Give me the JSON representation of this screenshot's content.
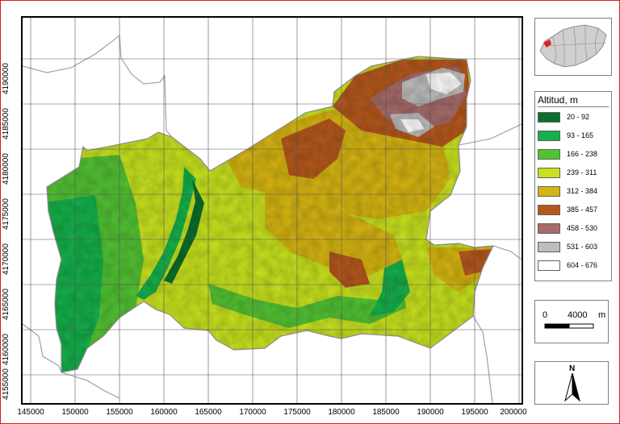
{
  "map": {
    "x_ticks": [
      "145000",
      "150000",
      "155000",
      "160000",
      "165000",
      "170000",
      "175000",
      "180000",
      "185000",
      "190000",
      "195000",
      "200000"
    ],
    "y_ticks": [
      "4190000",
      "4185000",
      "4180000",
      "4175000",
      "4170000",
      "4165000",
      "4160000",
      "4155000"
    ]
  },
  "legend": {
    "title": "Altitud, m",
    "items": [
      {
        "label": "20 - 92",
        "color": "#0a6f2a"
      },
      {
        "label": "93 - 165",
        "color": "#15b04a"
      },
      {
        "label": "166 - 238",
        "color": "#52c233"
      },
      {
        "label": "239 - 311",
        "color": "#c8e21e"
      },
      {
        "label": "312 - 384",
        "color": "#d6b512"
      },
      {
        "label": "385 - 457",
        "color": "#b5581c"
      },
      {
        "label": "458 - 530",
        "color": "#a86b6b"
      },
      {
        "label": "531 - 603",
        "color": "#bdbdbd"
      },
      {
        "label": "604 - 676",
        "color": "#ffffff"
      }
    ]
  },
  "scalebar": {
    "start": "0",
    "end": "4000",
    "unit": "m"
  },
  "north_arrow": {
    "label": "N"
  }
}
